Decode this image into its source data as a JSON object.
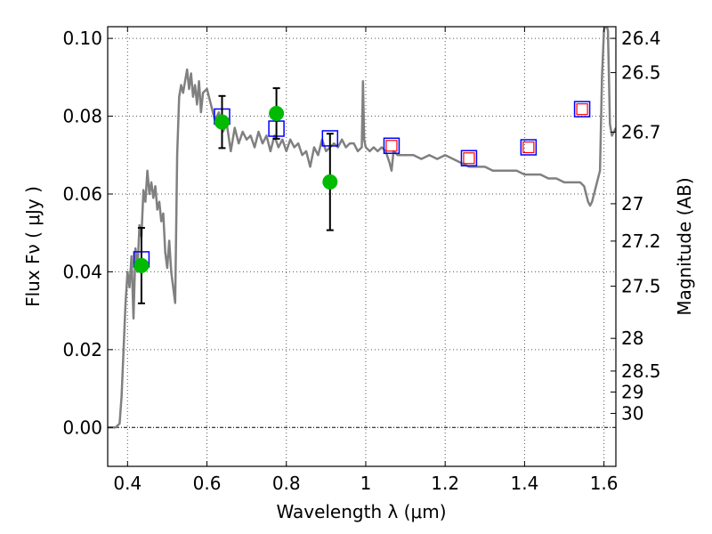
{
  "chart_data": {
    "type": "scatter",
    "xlabel": "Wavelength  λ (μm)",
    "ylabel": "Flux  Fν  ( μJy )",
    "ylabel_right": "Magnitude (AB)",
    "xlim": [
      0.35,
      1.63
    ],
    "ylim": [
      -0.01,
      0.103
    ],
    "grid": true,
    "x_ticks": [
      0.4,
      0.6,
      0.8,
      1.0,
      1.2,
      1.4,
      1.6
    ],
    "x_tick_labels": [
      "0.4",
      "0.6",
      "0.8",
      "1",
      "1.2",
      "1.4",
      "1.6"
    ],
    "y_ticks": [
      0.0,
      0.02,
      0.04,
      0.06,
      0.08,
      0.1
    ],
    "y_tick_labels": [
      "0.00",
      "0.02",
      "0.04",
      "0.06",
      "0.08",
      "0.10"
    ],
    "right_ticks": [
      {
        "label": "26.4",
        "flux": 0.1
      },
      {
        "label": "26.5",
        "flux": 0.0912
      },
      {
        "label": "26.7",
        "flux": 0.0759
      },
      {
        "label": "27",
        "flux": 0.0575
      },
      {
        "label": "27.2",
        "flux": 0.0479
      },
      {
        "label": "27.5",
        "flux": 0.0363
      },
      {
        "label": "28",
        "flux": 0.0229
      },
      {
        "label": "28.5",
        "flux": 0.0145
      },
      {
        "label": "29",
        "flux": 0.0091
      },
      {
        "label": "30",
        "flux": 0.0036
      }
    ],
    "series": [
      {
        "kind": "line",
        "color": "#808080",
        "x": [
          0.35,
          0.37,
          0.38,
          0.385,
          0.39,
          0.395,
          0.4,
          0.405,
          0.41,
          0.415,
          0.42,
          0.425,
          0.43,
          0.435,
          0.44,
          0.445,
          0.45,
          0.455,
          0.46,
          0.465,
          0.47,
          0.475,
          0.48,
          0.485,
          0.49,
          0.495,
          0.5,
          0.505,
          0.51,
          0.515,
          0.52,
          0.525,
          0.53,
          0.535,
          0.54,
          0.545,
          0.55,
          0.555,
          0.56,
          0.565,
          0.57,
          0.575,
          0.58,
          0.585,
          0.59,
          0.6,
          0.61,
          0.62,
          0.63,
          0.64,
          0.65,
          0.66,
          0.67,
          0.68,
          0.69,
          0.7,
          0.71,
          0.72,
          0.73,
          0.74,
          0.75,
          0.76,
          0.77,
          0.78,
          0.79,
          0.8,
          0.81,
          0.82,
          0.83,
          0.84,
          0.85,
          0.86,
          0.87,
          0.88,
          0.89,
          0.9,
          0.91,
          0.92,
          0.93,
          0.94,
          0.95,
          0.96,
          0.97,
          0.98,
          0.99,
          0.993,
          0.996,
          1.0,
          1.01,
          1.02,
          1.03,
          1.04,
          1.05,
          1.06,
          1.065,
          1.07,
          1.08,
          1.1,
          1.12,
          1.14,
          1.16,
          1.18,
          1.2,
          1.22,
          1.24,
          1.26,
          1.28,
          1.3,
          1.32,
          1.34,
          1.36,
          1.38,
          1.4,
          1.42,
          1.44,
          1.46,
          1.48,
          1.5,
          1.52,
          1.54,
          1.55,
          1.56,
          1.565,
          1.57,
          1.58,
          1.59,
          1.595,
          1.6,
          1.605,
          1.61,
          1.615,
          1.62,
          1.63
        ],
        "y": [
          0.0,
          0.0,
          0.001,
          0.008,
          0.02,
          0.032,
          0.04,
          0.036,
          0.044,
          0.028,
          0.046,
          0.04,
          0.052,
          0.049,
          0.061,
          0.058,
          0.066,
          0.06,
          0.063,
          0.059,
          0.062,
          0.056,
          0.058,
          0.053,
          0.055,
          0.045,
          0.041,
          0.048,
          0.04,
          0.036,
          0.032,
          0.07,
          0.085,
          0.088,
          0.086,
          0.089,
          0.092,
          0.087,
          0.091,
          0.085,
          0.088,
          0.083,
          0.089,
          0.081,
          0.086,
          0.087,
          0.083,
          0.079,
          0.081,
          0.076,
          0.078,
          0.071,
          0.077,
          0.073,
          0.076,
          0.074,
          0.075,
          0.072,
          0.076,
          0.073,
          0.075,
          0.071,
          0.075,
          0.072,
          0.074,
          0.071,
          0.074,
          0.072,
          0.073,
          0.07,
          0.071,
          0.067,
          0.072,
          0.07,
          0.074,
          0.071,
          0.072,
          0.073,
          0.072,
          0.074,
          0.072,
          0.073,
          0.073,
          0.071,
          0.072,
          0.089,
          0.074,
          0.072,
          0.071,
          0.072,
          0.071,
          0.072,
          0.071,
          0.068,
          0.066,
          0.071,
          0.07,
          0.07,
          0.07,
          0.069,
          0.07,
          0.069,
          0.07,
          0.069,
          0.068,
          0.067,
          0.067,
          0.067,
          0.066,
          0.066,
          0.066,
          0.066,
          0.065,
          0.065,
          0.065,
          0.064,
          0.064,
          0.063,
          0.063,
          0.063,
          0.062,
          0.058,
          0.057,
          0.058,
          0.062,
          0.066,
          0.09,
          0.102,
          0.104,
          0.102,
          0.078,
          0.075,
          0.077
        ]
      },
      {
        "kind": "points",
        "marker": "circle",
        "color": "#00bb00",
        "x": [
          0.435,
          0.638,
          0.775,
          0.91
        ],
        "y": [
          0.0416,
          0.0785,
          0.0807,
          0.0631
        ],
        "err": [
          0.0097,
          0.0067,
          0.0065,
          0.0124
        ]
      },
      {
        "kind": "points",
        "marker": "square",
        "color": "#0000ff",
        "x": [
          0.435,
          0.638,
          0.775,
          0.91,
          1.065,
          1.26,
          1.41,
          1.545
        ],
        "y": [
          0.0432,
          0.0799,
          0.0768,
          0.0743,
          0.0724,
          0.0692,
          0.072,
          0.0818
        ]
      },
      {
        "kind": "points",
        "marker": "square",
        "color": "#ff0000",
        "x": [
          1.065,
          1.26,
          1.41,
          1.545
        ],
        "y": [
          0.0724,
          0.0692,
          0.072,
          0.0818
        ]
      }
    ]
  }
}
